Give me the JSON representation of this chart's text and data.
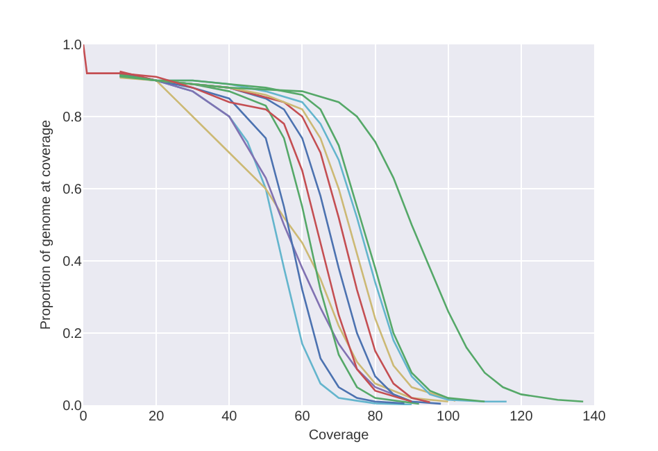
{
  "chart_data": {
    "type": "line",
    "xlabel": "Coverage",
    "ylabel": "Proportion of genome at coverage",
    "xlim": [
      0,
      140
    ],
    "xticks": [
      0,
      20,
      40,
      60,
      80,
      100,
      120,
      140
    ],
    "ylim": [
      0,
      1
    ],
    "yticks": [
      {
        "value": 0,
        "label": "0.0"
      },
      {
        "value": 0.2,
        "label": "0.2"
      },
      {
        "value": 0.4,
        "label": "0.4"
      },
      {
        "value": 0.6,
        "label": "0.6"
      },
      {
        "value": 0.8,
        "label": "0.8"
      },
      {
        "value": 1,
        "label": "1.0"
      }
    ],
    "grid": true,
    "line_style": "solid",
    "marker": "none",
    "series": [
      {
        "color": "#64b5cd",
        "x": [
          10,
          20,
          30,
          40,
          45,
          50,
          55,
          60,
          65,
          70,
          80,
          90
        ],
        "values": [
          0.915,
          0.9,
          0.87,
          0.8,
          0.73,
          0.6,
          0.38,
          0.17,
          0.06,
          0.02,
          0.005,
          0.002
        ]
      },
      {
        "color": "#ccb974",
        "x": [
          10,
          20,
          30,
          40,
          50,
          55,
          60,
          65,
          70,
          75,
          80,
          90,
          100
        ],
        "values": [
          0.91,
          0.9,
          0.8,
          0.7,
          0.6,
          0.52,
          0.45,
          0.35,
          0.22,
          0.12,
          0.06,
          0.02,
          0.01
        ]
      },
      {
        "color": "#8172b2",
        "x": [
          10,
          20,
          30,
          40,
          50,
          55,
          60,
          65,
          70,
          75,
          80,
          90
        ],
        "values": [
          0.92,
          0.9,
          0.87,
          0.8,
          0.63,
          0.5,
          0.38,
          0.27,
          0.17,
          0.1,
          0.05,
          0.01
        ]
      },
      {
        "color": "#4c72b0",
        "x": [
          10,
          20,
          30,
          40,
          50,
          55,
          60,
          65,
          70,
          75,
          80,
          88
        ],
        "values": [
          0.912,
          0.9,
          0.88,
          0.85,
          0.74,
          0.55,
          0.32,
          0.13,
          0.05,
          0.02,
          0.01,
          0.005
        ]
      },
      {
        "color": "#55a868",
        "x": [
          10,
          20,
          30,
          40,
          50,
          55,
          60,
          65,
          70,
          75,
          80,
          92
        ],
        "values": [
          0.918,
          0.9,
          0.89,
          0.87,
          0.83,
          0.74,
          0.55,
          0.32,
          0.14,
          0.05,
          0.02,
          0.004
        ]
      },
      {
        "color": "#4c72b0",
        "x": [
          10,
          20,
          30,
          40,
          50,
          55,
          60,
          65,
          70,
          75,
          80,
          85,
          90,
          98
        ],
        "values": [
          0.922,
          0.9,
          0.89,
          0.88,
          0.85,
          0.82,
          0.74,
          0.58,
          0.38,
          0.2,
          0.08,
          0.03,
          0.01,
          0.004
        ]
      },
      {
        "color": "#c44e52",
        "x": [
          10,
          20,
          30,
          40,
          55,
          60,
          65,
          70,
          75,
          80,
          85,
          90,
          95
        ],
        "values": [
          0.925,
          0.9,
          0.89,
          0.88,
          0.84,
          0.8,
          0.7,
          0.52,
          0.32,
          0.15,
          0.06,
          0.02,
          0.008
        ]
      },
      {
        "color": "#ccb974",
        "x": [
          10,
          20,
          30,
          40,
          50,
          60,
          65,
          70,
          75,
          80,
          85,
          90,
          102
        ],
        "values": [
          0.908,
          0.9,
          0.89,
          0.88,
          0.86,
          0.82,
          0.74,
          0.6,
          0.42,
          0.24,
          0.11,
          0.05,
          0.012
        ]
      },
      {
        "color": "#64b5cd",
        "x": [
          10,
          20,
          30,
          40,
          50,
          60,
          65,
          70,
          75,
          80,
          85,
          90,
          95,
          100,
          110,
          116
        ],
        "values": [
          0.914,
          0.9,
          0.9,
          0.89,
          0.87,
          0.84,
          0.78,
          0.68,
          0.52,
          0.34,
          0.18,
          0.08,
          0.03,
          0.015,
          0.01,
          0.01
        ]
      },
      {
        "color": "#55a868",
        "x": [
          10,
          20,
          30,
          40,
          50,
          60,
          65,
          70,
          75,
          80,
          85,
          90,
          95,
          100,
          110
        ],
        "values": [
          0.916,
          0.9,
          0.9,
          0.89,
          0.88,
          0.86,
          0.82,
          0.72,
          0.55,
          0.38,
          0.2,
          0.09,
          0.04,
          0.02,
          0.01
        ]
      },
      {
        "color": "#55a868",
        "x": [
          10,
          20,
          40,
          60,
          70,
          75,
          80,
          85,
          90,
          95,
          100,
          105,
          110,
          115,
          120,
          130,
          137
        ],
        "values": [
          0.911,
          0.9,
          0.88,
          0.87,
          0.84,
          0.8,
          0.73,
          0.63,
          0.5,
          0.38,
          0.26,
          0.16,
          0.09,
          0.05,
          0.03,
          0.015,
          0.01
        ]
      },
      {
        "color": "#c44e52",
        "x": [
          0,
          1,
          10,
          20,
          30,
          40,
          50,
          55,
          60,
          65,
          70,
          75,
          80,
          90
        ],
        "values": [
          1,
          0.92,
          0.92,
          0.91,
          0.88,
          0.84,
          0.82,
          0.78,
          0.65,
          0.45,
          0.25,
          0.1,
          0.04,
          0.01
        ]
      }
    ]
  }
}
